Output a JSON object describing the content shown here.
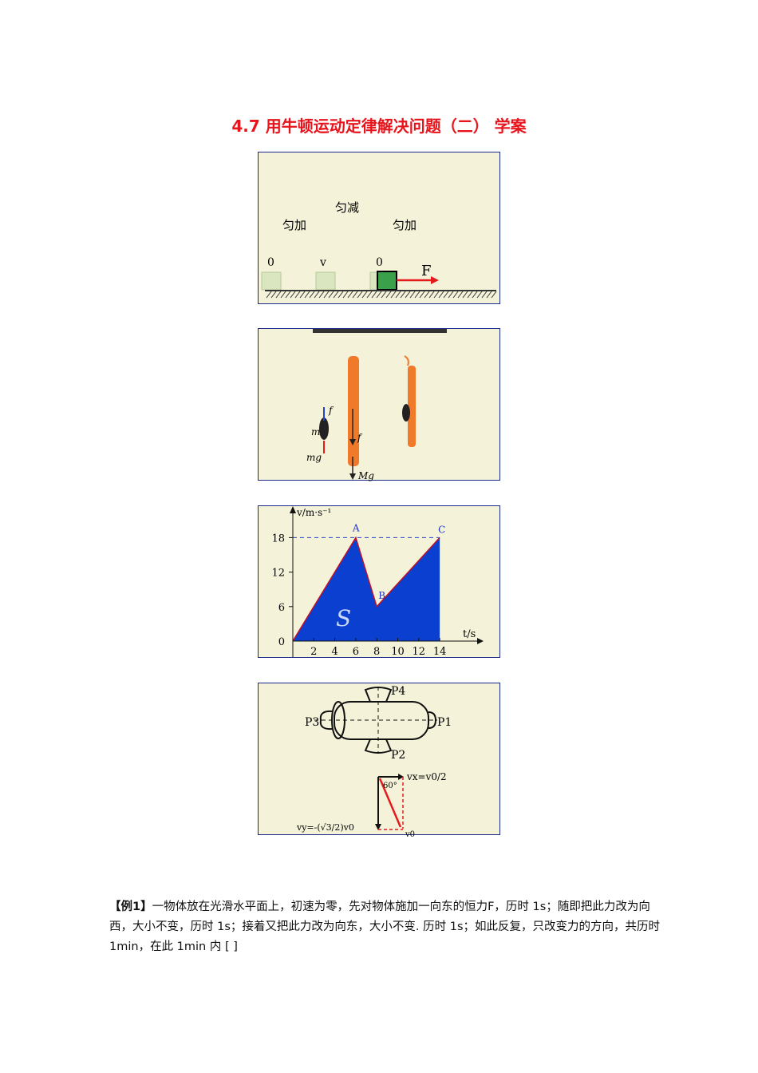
{
  "title": "4.7 用牛顿运动定律解决问题（二）    学案",
  "fig1": {
    "label_left": "匀加",
    "label_mid": "匀减",
    "label_right": "匀加",
    "v0": "0",
    "v": "v",
    "v0b": "0",
    "force": "F"
  },
  "fig2": {
    "f1": "f",
    "m": "m",
    "mg": "mg",
    "f2": "f",
    "Mg": "Mg"
  },
  "fig3": {
    "ylabel": "v/m·s⁻¹",
    "xlabel": "t/s",
    "point_a": "A",
    "point_b": "B",
    "point_c": "C",
    "area": "S"
  },
  "fig4": {
    "p1": "P1",
    "p2": "P2",
    "p3": "P3",
    "p4": "P4",
    "angle": "60°",
    "vx": "vx=v0/2",
    "vy": "vy=-(√3/2)v0",
    "v0": "v0"
  },
  "chart_data": {
    "type": "area",
    "xlabel": "t/s",
    "ylabel": "v/m·s⁻¹",
    "x": [
      0,
      6,
      8,
      14
    ],
    "y": [
      0,
      18,
      6,
      18
    ],
    "point_labels": [
      "",
      "A",
      "B",
      "C"
    ],
    "xticks": [
      2,
      4,
      6,
      8,
      10,
      12,
      14
    ],
    "yticks": [
      0,
      6,
      12,
      18
    ],
    "fill_color": "#0b3fd0"
  },
  "example": {
    "label": "【例1】",
    "text": "一物体放在光滑水平面上，初速为零，先对物体施加一向东的恒力F，历时 1s；随即把此力改为向西，大小不变，历时 1s；接着又把此力改为向东，大小不变. 历时 1s；如此反复，只改变力的方向，共历时 1min，在此 1min 内 [ ]"
  }
}
